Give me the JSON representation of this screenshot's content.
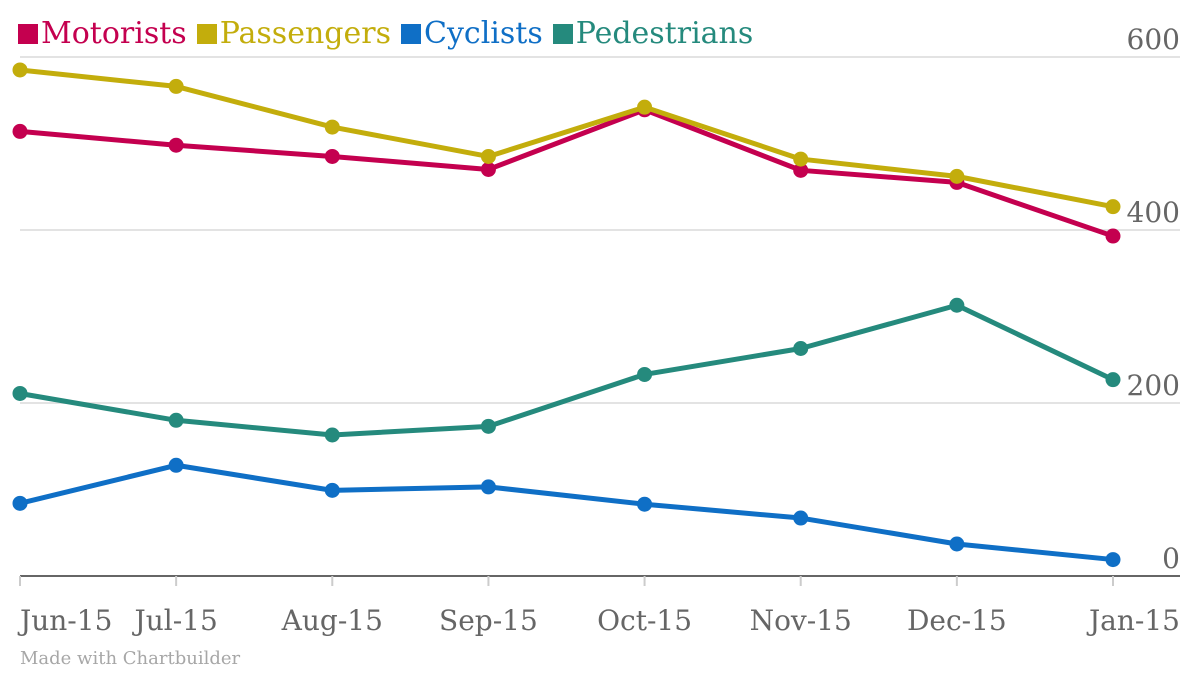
{
  "chart_data": {
    "type": "line",
    "categories": [
      "Jun-15",
      "Jul-15",
      "Aug-15",
      "Sep-15",
      "Oct-15",
      "Nov-15",
      "Dec-15",
      "Jan-15"
    ],
    "series": [
      {
        "name": "Motorists",
        "color": "#c4004f",
        "values": [
          514,
          498,
          485,
          470,
          539,
          469,
          455,
          393
        ]
      },
      {
        "name": "Passengers",
        "color": "#c3ad0c",
        "values": [
          585,
          566,
          519,
          485,
          542,
          482,
          462,
          427
        ]
      },
      {
        "name": "Cyclists",
        "color": "#0f6fc6",
        "values": [
          84,
          128,
          99,
          103,
          83,
          67,
          37,
          19
        ]
      },
      {
        "name": "Pedestrians",
        "color": "#258a7d",
        "values": [
          211,
          180,
          163,
          173,
          233,
          263,
          313,
          227
        ]
      }
    ],
    "yticks": [
      0,
      200,
      400,
      600
    ],
    "ylim": [
      0,
      600
    ],
    "grid": true,
    "legend_position": "top-left",
    "y_axis_position": "right"
  },
  "credit": "Made with Chartbuilder"
}
